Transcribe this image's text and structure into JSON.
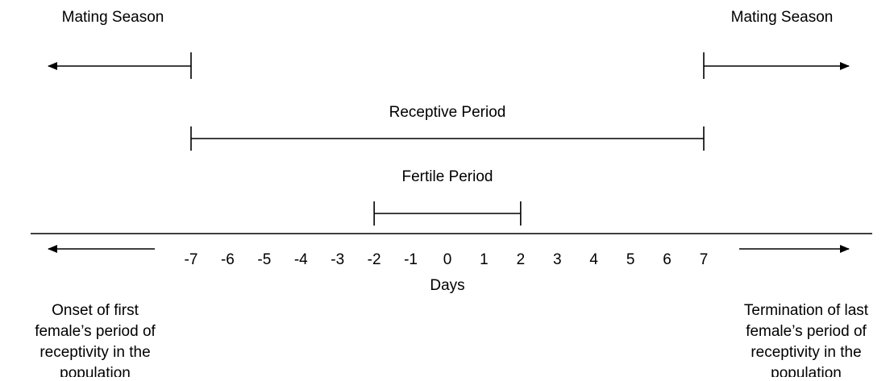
{
  "mating_season": {
    "left_label": "Mating Season",
    "right_label": "Mating Season",
    "left_end": -7,
    "right_start": 7
  },
  "receptive_period": {
    "label": "Receptive Period",
    "start": -7,
    "end": 7
  },
  "fertile_period": {
    "label": "Fertile Period",
    "start": -2,
    "end": 2
  },
  "axis": {
    "label": "Days",
    "ticks": [
      -7,
      -6,
      -5,
      -4,
      -3,
      -2,
      -1,
      0,
      1,
      2,
      3,
      4,
      5,
      6,
      7
    ]
  },
  "onset_note": {
    "lines": [
      "Onset of first",
      "female’s period of",
      "receptivity in the",
      "population"
    ]
  },
  "termination_note": {
    "lines": [
      "Termination of last",
      "female’s period of",
      "receptivity in the",
      "population"
    ]
  }
}
